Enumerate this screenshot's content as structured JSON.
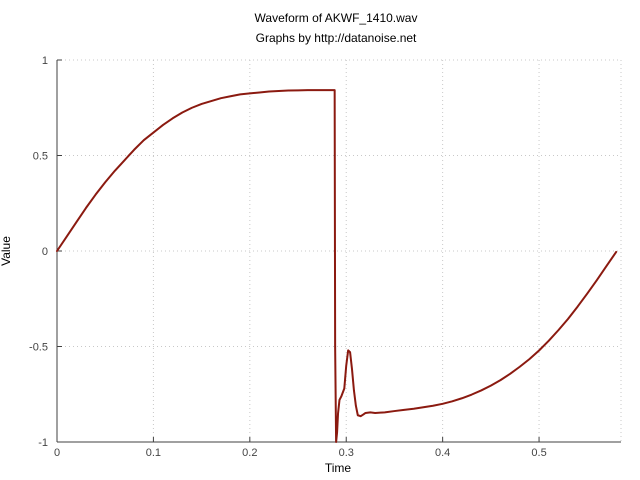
{
  "chart_data": {
    "type": "line",
    "title": "Waveform of AKWF_1410.wav",
    "subtitle": "Graphs by http://datanoise.net",
    "xlabel": "Time",
    "ylabel": "Value",
    "xlim": [
      0,
      0.585
    ],
    "ylim": [
      -1,
      1
    ],
    "xticks": [
      0,
      0.1,
      0.2,
      0.3,
      0.4,
      0.5
    ],
    "xtick_labels": [
      "0",
      "0.1",
      "0.2",
      "0.3",
      "0.4",
      "0.5"
    ],
    "yticks": [
      -1,
      -0.5,
      0,
      0.5,
      1
    ],
    "ytick_labels": [
      "-1",
      "-0.5",
      "0",
      "0.5",
      "1"
    ],
    "grid": true,
    "legend": "none",
    "series": [
      {
        "color": "#8b1a10",
        "x": [
          0,
          0.01,
          0.02,
          0.03,
          0.04,
          0.05,
          0.06,
          0.07,
          0.08,
          0.09,
          0.1,
          0.11,
          0.12,
          0.13,
          0.14,
          0.15,
          0.16,
          0.17,
          0.18,
          0.19,
          0.2,
          0.21,
          0.22,
          0.23,
          0.24,
          0.25,
          0.26,
          0.27,
          0.28,
          0.288,
          0.2885,
          0.2895,
          0.2905,
          0.2915,
          0.293,
          0.295,
          0.298,
          0.3,
          0.302,
          0.304,
          0.306,
          0.308,
          0.31,
          0.312,
          0.315,
          0.318,
          0.32,
          0.325,
          0.33,
          0.34,
          0.35,
          0.36,
          0.37,
          0.38,
          0.39,
          0.4,
          0.41,
          0.42,
          0.43,
          0.44,
          0.45,
          0.46,
          0.47,
          0.48,
          0.49,
          0.5,
          0.51,
          0.52,
          0.53,
          0.54,
          0.55,
          0.56,
          0.57,
          0.58
        ],
        "values": [
          0,
          0.075,
          0.15,
          0.225,
          0.295,
          0.36,
          0.42,
          0.475,
          0.53,
          0.58,
          0.62,
          0.66,
          0.695,
          0.725,
          0.75,
          0.77,
          0.785,
          0.8,
          0.81,
          0.82,
          0.825,
          0.83,
          0.835,
          0.838,
          0.84,
          0.841,
          0.842,
          0.842,
          0.842,
          0.842,
          -0.5,
          -1.0,
          -0.95,
          -0.85,
          -0.78,
          -0.76,
          -0.72,
          -0.6,
          -0.52,
          -0.53,
          -0.62,
          -0.73,
          -0.81,
          -0.86,
          -0.865,
          -0.855,
          -0.848,
          -0.845,
          -0.848,
          -0.845,
          -0.838,
          -0.832,
          -0.826,
          -0.818,
          -0.81,
          -0.8,
          -0.787,
          -0.771,
          -0.752,
          -0.73,
          -0.705,
          -0.676,
          -0.643,
          -0.606,
          -0.566,
          -0.521,
          -0.47,
          -0.415,
          -0.356,
          -0.291,
          -0.223,
          -0.152,
          -0.078,
          -0.005
        ]
      }
    ]
  }
}
